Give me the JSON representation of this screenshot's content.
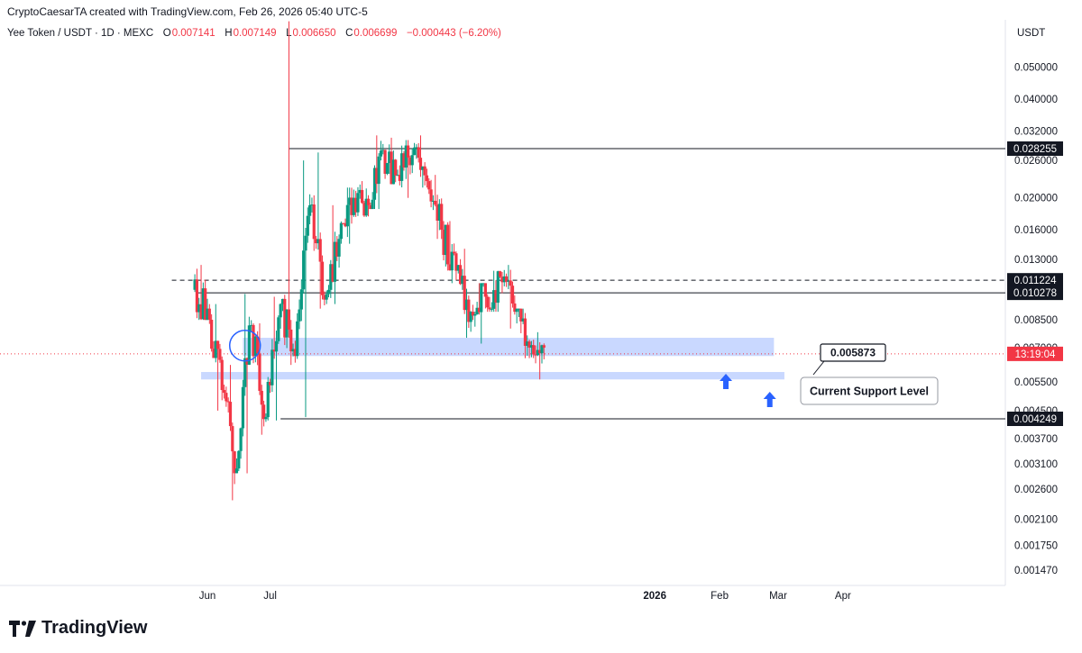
{
  "header": {
    "credit": "CryptoCaesarTA created with TradingView.com, Feb 26, 2026 05:40 UTC-5"
  },
  "legend": {
    "symbol": "Yee Token / USDT · 1D · MEXC",
    "o_label": "O",
    "o_value": "0.007141",
    "h_label": "H",
    "h_value": "0.007149",
    "l_label": "L",
    "l_value": "0.006650",
    "c_label": "C",
    "c_value": "0.006699",
    "change": "−0.000443 (−6.20%)"
  },
  "currency": "USDT",
  "brand": {
    "name": "TradingView"
  },
  "colors": {
    "up": "#089981",
    "down": "#f23645",
    "zone": "#2962ff",
    "level": "#131722"
  },
  "chart_data": {
    "type": "candlestick",
    "scale": "log",
    "y_ticks": [
      "0.050000",
      "0.040000",
      "0.032000",
      "0.026000",
      "0.020000",
      "0.016000",
      "0.013000",
      "0.008500",
      "0.007000",
      "0.005500",
      "0.004500",
      "0.003700",
      "0.003100",
      "0.002600",
      "0.002100",
      "0.001750",
      "0.001470"
    ],
    "x_ticks": [
      {
        "label": "Jun",
        "date": "2025-06-01",
        "bold": false
      },
      {
        "label": "Jul",
        "date": "2025-07-01",
        "bold": false
      },
      {
        "label": "2026",
        "date": "2026-01-01",
        "bold": true
      },
      {
        "label": "Feb",
        "date": "2026-02-01",
        "bold": false
      },
      {
        "label": "Mar",
        "date": "2026-03-01",
        "bold": false
      },
      {
        "label": "Apr",
        "date": "2026-04-01",
        "bold": false
      }
    ],
    "price_labels": [
      {
        "text": "0.028255",
        "value": 0.028255,
        "style": "dark"
      },
      {
        "text": "0.011224",
        "value": 0.011224,
        "style": "dark"
      },
      {
        "text": "0.010278",
        "value": 0.010278,
        "style": "dark"
      },
      {
        "text": "0.004249",
        "value": 0.004249,
        "style": "dark"
      },
      {
        "text": "13:19:04",
        "value": 0.0067,
        "style": "red"
      }
    ],
    "horizontal_lines": [
      {
        "value": 0.028255,
        "from": "2025-07-10",
        "style": "solid"
      },
      {
        "value": 0.011224,
        "from": "2025-05-15",
        "style": "dashed"
      },
      {
        "value": 0.010278,
        "from": "2025-05-27",
        "style": "solid"
      },
      {
        "value": 0.004249,
        "from": "2025-07-06",
        "style": "solid"
      }
    ],
    "zones": [
      {
        "from": "2025-06-18",
        "to": "2026-02-27",
        "top": 0.0075,
        "bottom": 0.0066
      },
      {
        "from": "2025-05-29",
        "to": "2026-03-04",
        "top": 0.0059,
        "bottom": 0.0056
      }
    ],
    "annotations": [
      {
        "type": "callout",
        "text": "0.005873"
      },
      {
        "type": "callout",
        "text": "Current Support Level"
      },
      {
        "type": "arrow-up",
        "date": "2026-02-04"
      },
      {
        "type": "arrow-up",
        "date": "2026-02-25"
      },
      {
        "type": "circle",
        "date": "2025-06-19"
      }
    ],
    "candles_weekly": [
      {
        "date": "2025-05-26",
        "o": 0.0105,
        "h": 0.0125,
        "l": 0.0085,
        "c": 0.0092
      },
      {
        "date": "2025-06-02",
        "o": 0.0092,
        "h": 0.0095,
        "l": 0.0045,
        "c": 0.0052
      },
      {
        "date": "2025-06-09",
        "o": 0.0052,
        "h": 0.0062,
        "l": 0.0024,
        "c": 0.003
      },
      {
        "date": "2025-06-16",
        "o": 0.003,
        "h": 0.0102,
        "l": 0.0029,
        "c": 0.0082
      },
      {
        "date": "2025-06-23",
        "o": 0.0082,
        "h": 0.0083,
        "l": 0.0038,
        "c": 0.0043
      },
      {
        "date": "2025-06-30",
        "o": 0.0043,
        "h": 0.01,
        "l": 0.0042,
        "c": 0.0095
      },
      {
        "date": "2025-07-07",
        "o": 0.0095,
        "h": 0.069,
        "l": 0.0062,
        "c": 0.0066
      },
      {
        "date": "2025-07-14",
        "o": 0.0066,
        "h": 0.026,
        "l": 0.0043,
        "c": 0.019
      },
      {
        "date": "2025-07-21",
        "o": 0.019,
        "h": 0.0275,
        "l": 0.0092,
        "c": 0.0098
      },
      {
        "date": "2025-07-28",
        "o": 0.0098,
        "h": 0.019,
        "l": 0.0095,
        "c": 0.015
      },
      {
        "date": "2025-08-04",
        "o": 0.015,
        "h": 0.0215,
        "l": 0.0145,
        "c": 0.02
      },
      {
        "date": "2025-08-11",
        "o": 0.02,
        "h": 0.0225,
        "l": 0.0175,
        "c": 0.019
      },
      {
        "date": "2025-08-18",
        "o": 0.019,
        "h": 0.031,
        "l": 0.0185,
        "c": 0.028
      },
      {
        "date": "2025-08-25",
        "o": 0.028,
        "h": 0.0305,
        "l": 0.022,
        "c": 0.0235
      },
      {
        "date": "2025-09-01",
        "o": 0.0235,
        "h": 0.03,
        "l": 0.02,
        "c": 0.027
      },
      {
        "date": "2025-09-08",
        "o": 0.027,
        "h": 0.031,
        "l": 0.0215,
        "c": 0.0225
      },
      {
        "date": "2025-09-15",
        "o": 0.0225,
        "h": 0.0235,
        "l": 0.015,
        "c": 0.016
      },
      {
        "date": "2025-09-22",
        "o": 0.016,
        "h": 0.017,
        "l": 0.011,
        "c": 0.012
      },
      {
        "date": "2025-09-29",
        "o": 0.012,
        "h": 0.014,
        "l": 0.0075,
        "c": 0.009
      },
      {
        "date": "2025-10-06",
        "o": 0.009,
        "h": 0.011,
        "l": 0.0072,
        "c": 0.01
      },
      {
        "date": "2025-10-13",
        "o": 0.01,
        "h": 0.012,
        "l": 0.009,
        "c": 0.0115
      },
      {
        "date": "2025-10-20",
        "o": 0.0115,
        "h": 0.0125,
        "l": 0.008,
        "c": 0.009
      },
      {
        "date": "2025-10-27",
        "o": 0.009,
        "h": 0.0092,
        "l": 0.0065,
        "c": 0.007
      },
      {
        "date": "2025-11-03",
        "o": 0.007,
        "h": 0.0078,
        "l": 0.0056,
        "c": 0.007
      }
    ]
  }
}
